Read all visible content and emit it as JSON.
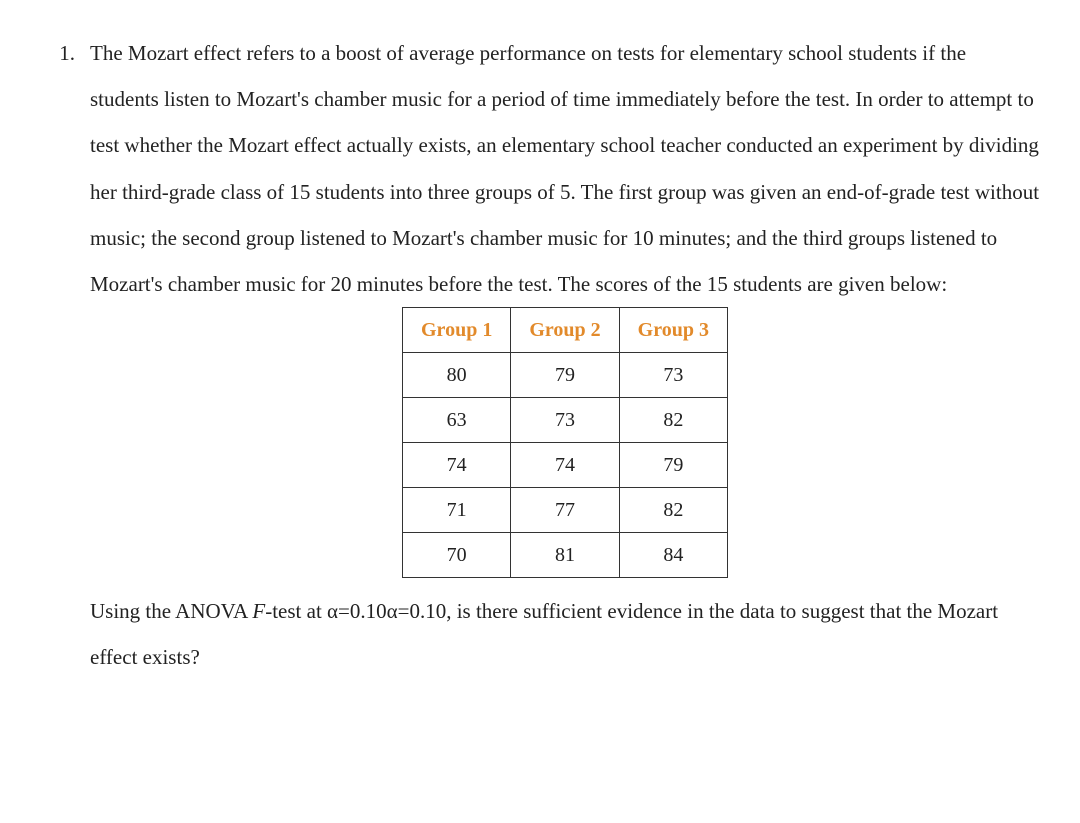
{
  "question_number": "1.",
  "paragraph_lead": "The Mozart effect refers to a boost of average performance on tests for elementary school students if the students listen to Mozart's chamber music for a period of time immediately before the test. In order to attempt to test whether the Mozart effect actually exists, an elementary school teacher conducted an experiment by dividing her third-grade class of 15 students into three groups of 5. The first group was given an end-of-grade test without music; the second group listened to Mozart's chamber music for 10 minutes; and the third groups listened to Mozart's chamber music for 20 minutes before the test. The scores of the 15 students are given below:",
  "table": {
    "columns": [
      "Group 1",
      "Group 2",
      "Group 3"
    ],
    "rows": [
      [
        "80",
        "79",
        "73"
      ],
      [
        "63",
        "73",
        "82"
      ],
      [
        "74",
        "74",
        "79"
      ],
      [
        "71",
        "77",
        "82"
      ],
      [
        "70",
        "81",
        "84"
      ]
    ],
    "header_color": "#E28A2B",
    "border_color": "#333333",
    "cell_fontsize": 20
  },
  "closing_parts": {
    "prefix": "Using the ANOVA ",
    "ftest": "F",
    "mid": "-test at α=0.10α=0.10, is there sufficient evidence in the data to suggest that the Mozart effect exists?"
  }
}
